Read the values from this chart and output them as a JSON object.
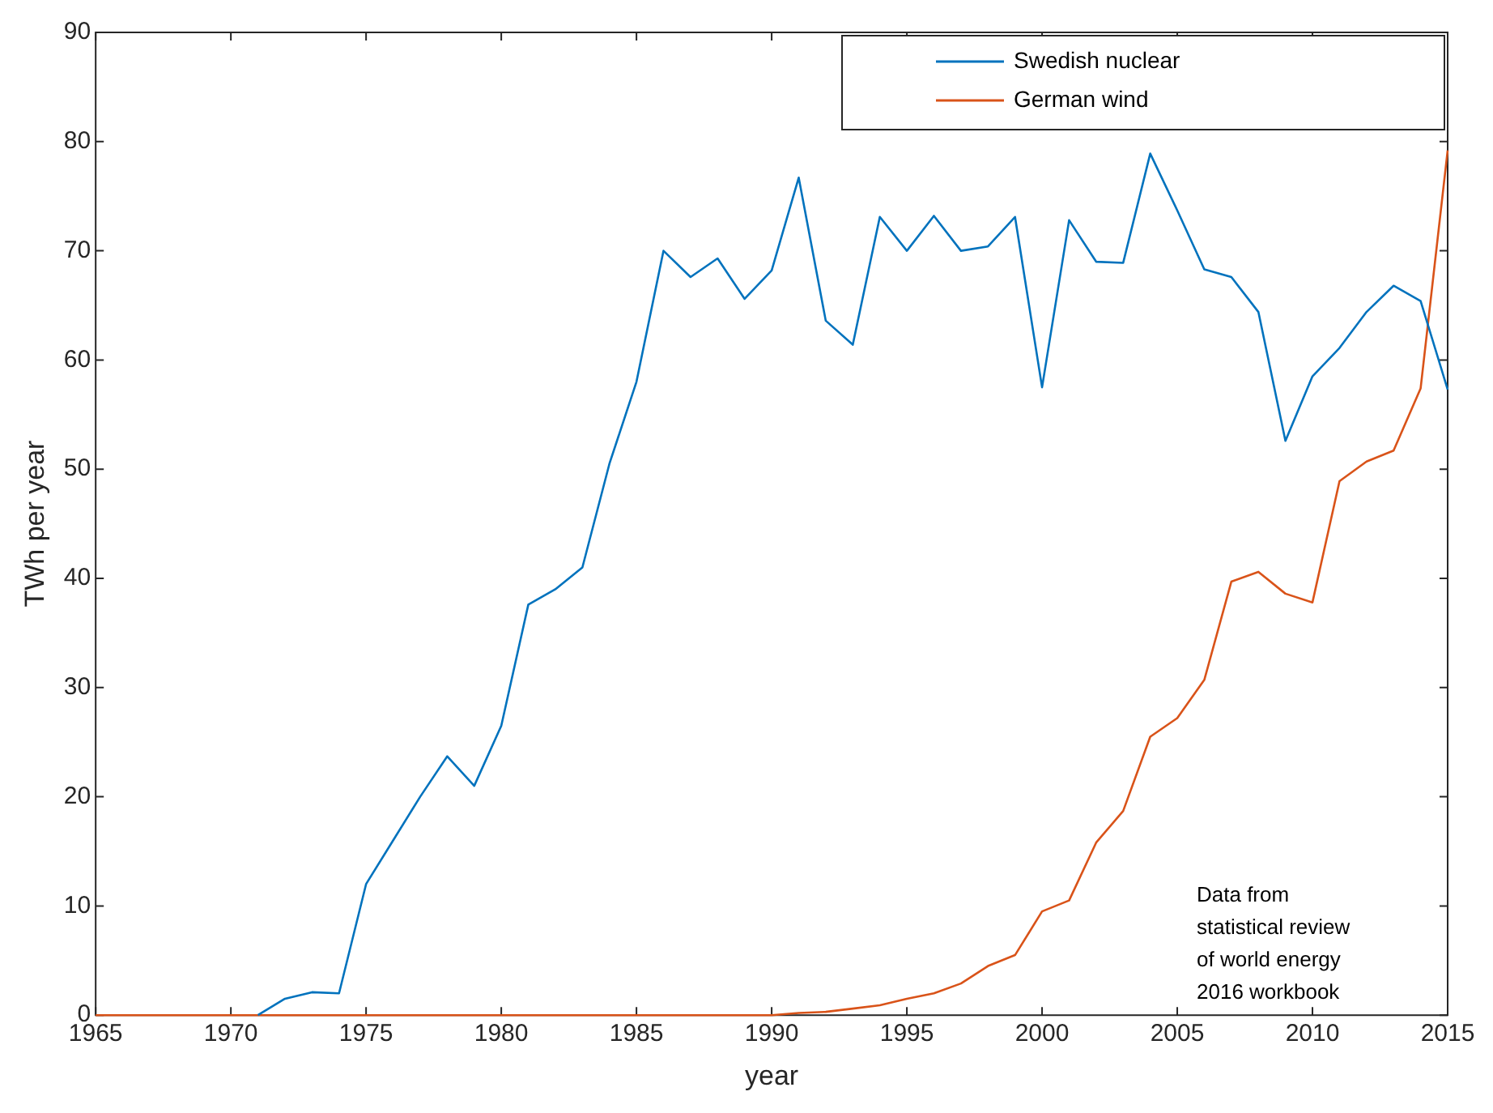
{
  "chart_data": {
    "type": "line",
    "xlabel": "year",
    "ylabel": "TWh per year",
    "x": [
      1965,
      1966,
      1967,
      1968,
      1969,
      1970,
      1971,
      1972,
      1973,
      1974,
      1975,
      1976,
      1977,
      1978,
      1979,
      1980,
      1981,
      1982,
      1983,
      1984,
      1985,
      1986,
      1987,
      1988,
      1989,
      1990,
      1991,
      1992,
      1993,
      1994,
      1995,
      1996,
      1997,
      1998,
      1999,
      2000,
      2001,
      2002,
      2003,
      2004,
      2005,
      2006,
      2007,
      2008,
      2009,
      2010,
      2011,
      2012,
      2013,
      2014,
      2015
    ],
    "series": [
      {
        "name": "Swedish nuclear",
        "color": "#0072bd",
        "values": [
          null,
          null,
          null,
          null,
          null,
          null,
          0,
          1.5,
          2.1,
          2.0,
          12,
          16,
          20,
          23.7,
          21,
          26.5,
          37.6,
          39,
          41,
          50.5,
          58,
          70,
          67.6,
          69.3,
          65.6,
          68.2,
          76.7,
          63.6,
          61.4,
          73.1,
          70,
          73.2,
          70,
          70.4,
          73.1,
          57.5,
          72.8,
          69,
          68.9,
          78.9,
          73.7,
          68.3,
          67.6,
          64.4,
          52.6,
          58.5,
          61.1,
          64.4,
          66.8,
          65.4,
          57.3
        ]
      },
      {
        "name": "German wind",
        "color": "#d95319",
        "values": [
          0,
          0,
          0,
          0,
          0,
          0,
          0,
          0,
          0,
          0,
          0,
          0,
          0,
          0,
          0,
          0,
          0,
          0,
          0,
          0,
          0,
          0,
          0,
          0,
          0,
          0,
          0.2,
          0.3,
          0.6,
          0.9,
          1.5,
          2.0,
          2.9,
          4.5,
          5.5,
          9.5,
          10.5,
          15.8,
          18.7,
          25.5,
          27.2,
          30.7,
          39.7,
          40.6,
          38.6,
          37.8,
          48.9,
          50.7,
          51.7,
          57.4,
          79.2
        ]
      }
    ],
    "xlim": [
      1965,
      2015
    ],
    "xticks": [
      1965,
      1970,
      1975,
      1980,
      1985,
      1990,
      1995,
      2000,
      2005,
      2010,
      2015
    ],
    "ylim": [
      0,
      90
    ],
    "yticks": [
      0,
      10,
      20,
      30,
      40,
      50,
      60,
      70,
      80,
      90
    ],
    "grid": false,
    "legend": "top right",
    "marker": "none",
    "line_style": "solid",
    "annotations": [
      "Data from\nstatistical review\nof world energy\n2016 workbook"
    ]
  }
}
